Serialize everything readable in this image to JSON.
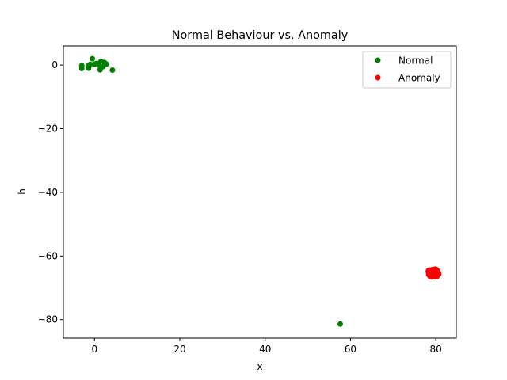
{
  "chart_data": {
    "type": "scatter",
    "title": "Normal Behaviour vs. Anomaly",
    "xlabel": "x",
    "ylabel": "h",
    "xlim": [
      -7.3,
      84.8
    ],
    "ylim": [
      -85.8,
      6.0
    ],
    "xticks": [
      0,
      20,
      40,
      60,
      80
    ],
    "yticks": [
      0,
      -20,
      -40,
      -60,
      -80
    ],
    "xtick_labels": [
      "0",
      "20",
      "40",
      "60",
      "80"
    ],
    "ytick_labels": [
      "0",
      "−20",
      "−40",
      "−60",
      "−80"
    ],
    "grid": false,
    "legend_position": "top-right",
    "series": [
      {
        "name": "Normal",
        "color": "#008000",
        "points": [
          [
            -3.0,
            -0.2
          ],
          [
            -3.0,
            -1.1
          ],
          [
            -1.5,
            -0.3
          ],
          [
            -1.4,
            -1.0
          ],
          [
            -1.0,
            0.2
          ],
          [
            -0.5,
            2.0
          ],
          [
            0.0,
            0.3
          ],
          [
            0.5,
            0.5
          ],
          [
            1.0,
            0.0
          ],
          [
            1.3,
            -1.5
          ],
          [
            1.5,
            1.2
          ],
          [
            2.0,
            -0.5
          ],
          [
            2.3,
            0.8
          ],
          [
            2.8,
            0.3
          ],
          [
            4.2,
            -1.6
          ],
          [
            57.6,
            -81.4
          ]
        ]
      },
      {
        "name": "Anomaly",
        "color": "#ff0000",
        "points": [
          [
            78.5,
            -64.8
          ],
          [
            79.0,
            -65.5
          ],
          [
            79.5,
            -64.6
          ],
          [
            80.0,
            -65.3
          ],
          [
            79.2,
            -66.0
          ],
          [
            80.2,
            -64.9
          ],
          [
            78.8,
            -65.2
          ],
          [
            79.7,
            -65.8
          ],
          [
            80.4,
            -65.6
          ],
          [
            79.1,
            -64.7
          ],
          [
            78.6,
            -65.7
          ],
          [
            80.1,
            -66.1
          ],
          [
            79.4,
            -65.1
          ],
          [
            79.9,
            -64.5
          ],
          [
            78.9,
            -66.2
          ]
        ]
      }
    ]
  }
}
